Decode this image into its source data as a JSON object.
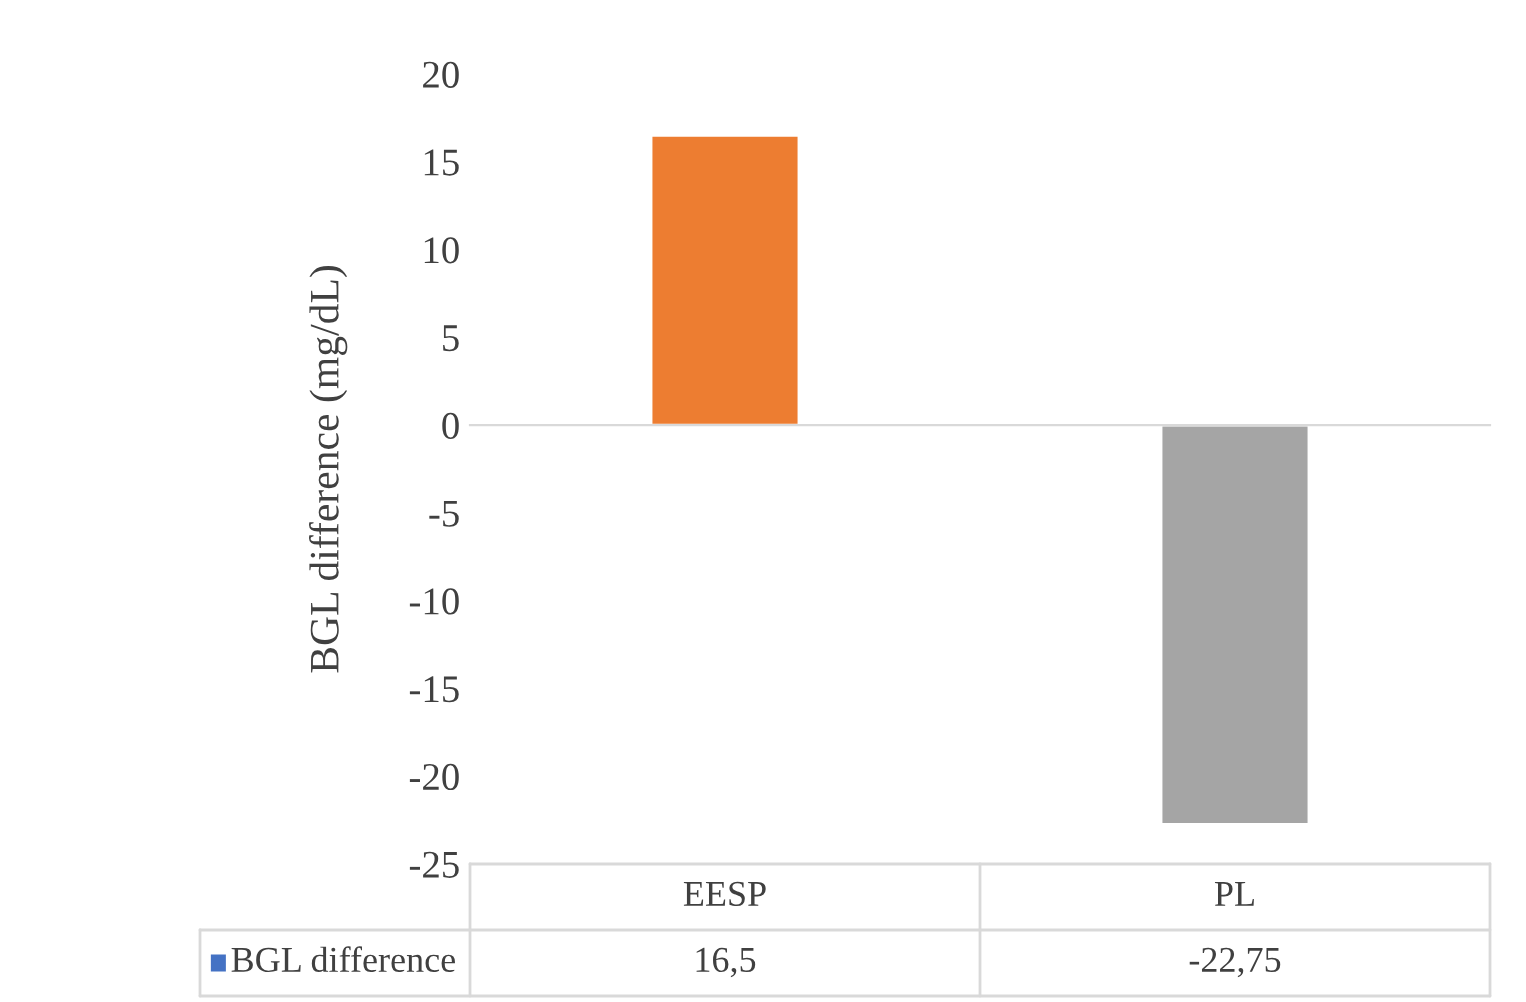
{
  "chart_data": {
    "type": "bar",
    "ylabel": "BGL difference (mg/dL)",
    "categories": [
      "EESP",
      "PL"
    ],
    "series": [
      {
        "name": "BGL difference",
        "color": "#4472c4",
        "colors": [
          "#ed7d31",
          "#a5a5a5"
        ],
        "values": [
          16.5,
          -22.75
        ],
        "value_labels": [
          "16,5",
          "-22,75"
        ]
      }
    ],
    "ylim": [
      -25,
      20
    ],
    "yticks": [
      20,
      15,
      10,
      5,
      0,
      -5,
      -10,
      -15,
      -20,
      -25
    ]
  }
}
